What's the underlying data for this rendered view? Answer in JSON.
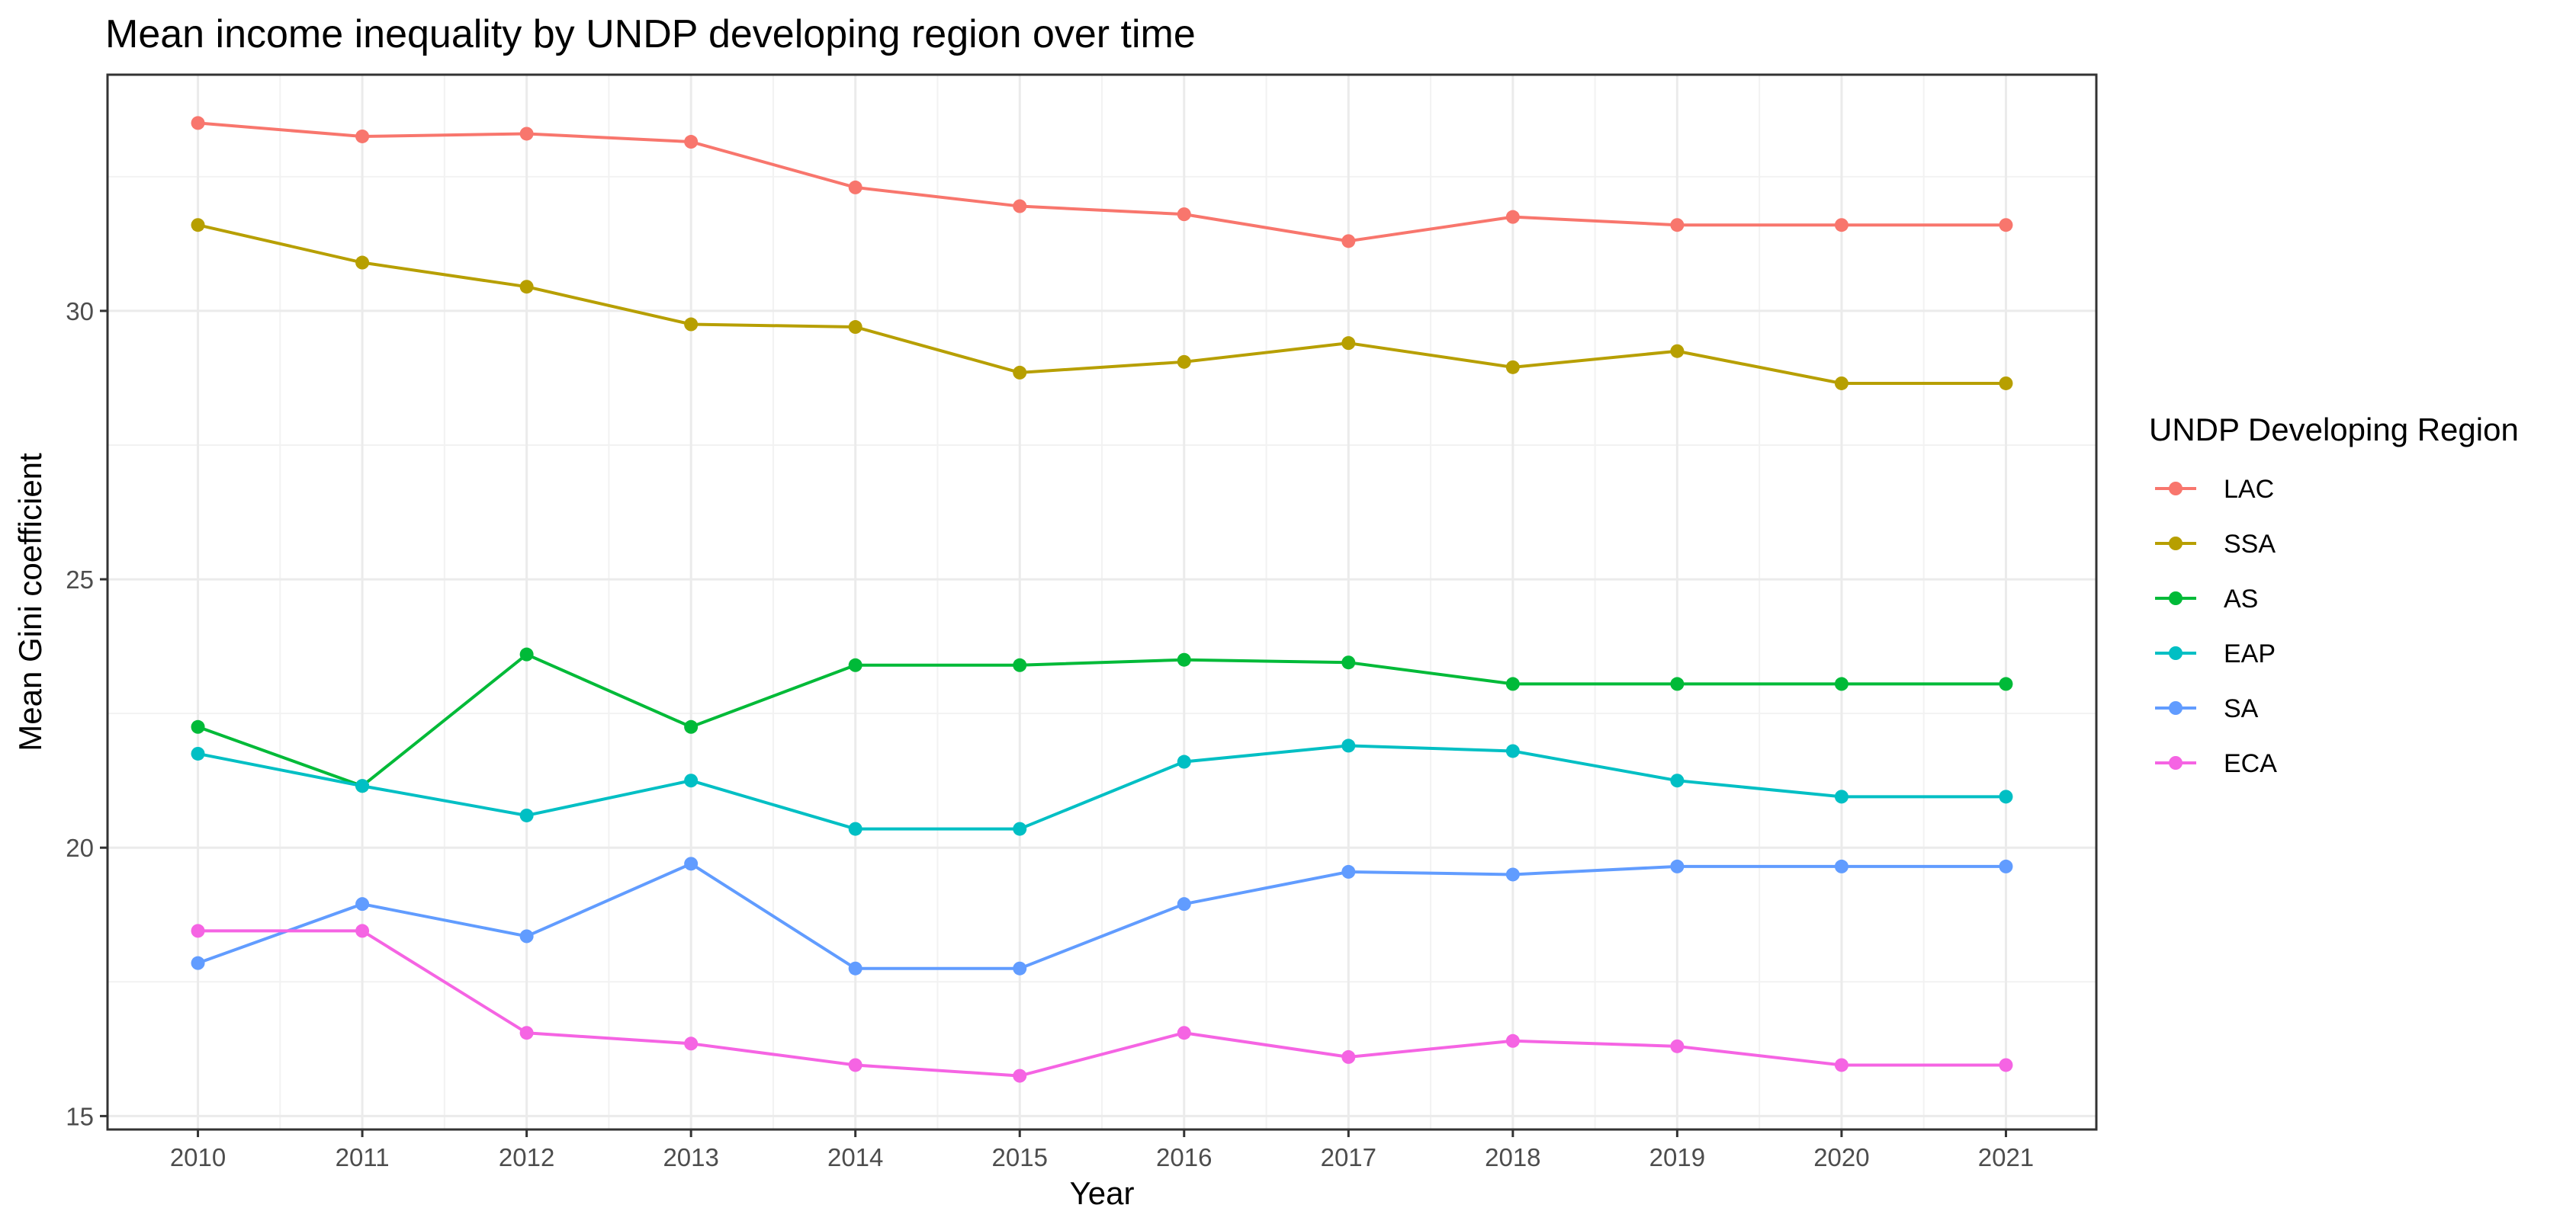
{
  "chart_data": {
    "type": "line",
    "title": "Mean income inequality by UNDP developing region over time",
    "xlabel": "Year",
    "ylabel": "Mean Gini coefficient",
    "x": [
      2010,
      2011,
      2012,
      2013,
      2014,
      2015,
      2016,
      2017,
      2018,
      2019,
      2020,
      2021
    ],
    "xlim": [
      2009.45,
      2021.55
    ],
    "ylim": [
      14.75,
      34.4
    ],
    "y_ticks": [
      15,
      20,
      25,
      30
    ],
    "grid": true,
    "legend": {
      "title": "UNDP Developing Region",
      "placement": "right"
    },
    "series": [
      {
        "name": "LAC",
        "color": "#F8766D",
        "values": [
          33.5,
          33.25,
          33.3,
          33.15,
          32.3,
          31.95,
          31.8,
          31.3,
          31.75,
          31.6,
          31.6,
          31.6
        ]
      },
      {
        "name": "SSA",
        "color": "#B79F00",
        "values": [
          31.6,
          30.9,
          30.45,
          29.75,
          29.7,
          28.85,
          29.05,
          29.4,
          28.95,
          29.25,
          28.65,
          28.65
        ]
      },
      {
        "name": "AS",
        "color": "#00BA38",
        "values": [
          22.25,
          21.15,
          23.6,
          22.25,
          23.4,
          23.4,
          23.5,
          23.45,
          23.05,
          23.05,
          23.05,
          23.05
        ]
      },
      {
        "name": "EAP",
        "color": "#00BFC4",
        "values": [
          21.75,
          21.15,
          20.6,
          21.25,
          20.35,
          20.35,
          21.6,
          21.9,
          21.8,
          21.25,
          20.95,
          20.95
        ]
      },
      {
        "name": "SA",
        "color": "#619CFF",
        "values": [
          17.85,
          18.95,
          18.35,
          19.7,
          17.75,
          17.75,
          18.95,
          19.55,
          19.5,
          19.65,
          19.65,
          19.65
        ]
      },
      {
        "name": "ECA",
        "color": "#F564E3",
        "values": [
          18.45,
          18.45,
          16.55,
          16.35,
          15.95,
          15.75,
          16.55,
          16.1,
          16.4,
          16.3,
          15.95,
          15.95
        ]
      }
    ]
  }
}
